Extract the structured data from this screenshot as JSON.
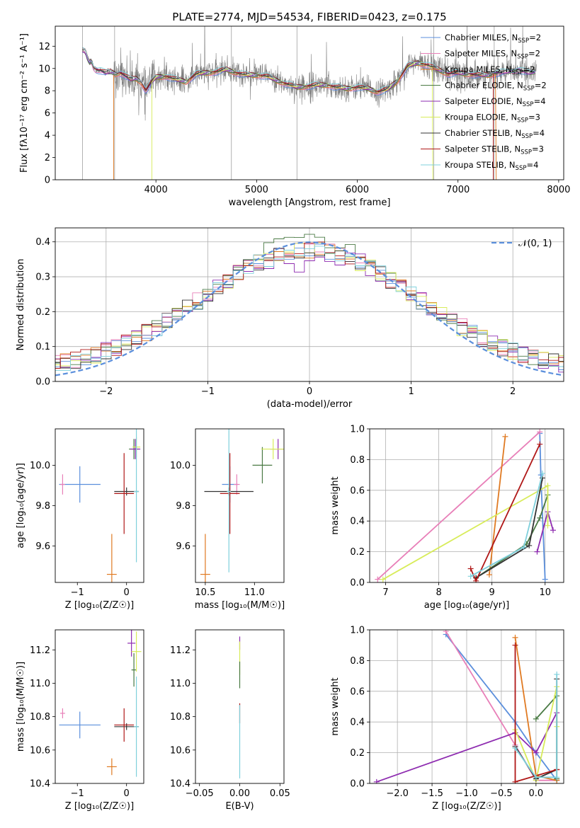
{
  "figure": {
    "title": "PLATE=2774, MJD=54534, FIBERID=0423, z=0.175"
  },
  "colors": {
    "c1": "#5b8fdc",
    "c2": "#e87fb8",
    "c3": "#e07a22",
    "c4": "#4a7a44",
    "c5": "#8e2cb0",
    "c6": "#d8ec5a",
    "c7": "#333333",
    "c8": "#b01818",
    "c9": "#7fd0dc",
    "data": "#7f7f7f",
    "normal": "#5b8fdc"
  },
  "chart_data": [
    {
      "id": "spectrum",
      "type": "line",
      "title": "PLATE=2774, MJD=54534, FIBERID=0423, z=0.175",
      "xlabel": "wavelength [Angstrom, rest frame]",
      "ylabel": "Flux [fλ10⁻¹⁷ erg cm⁻² s⁻¹ A⁻¹]",
      "xlim": [
        3000,
        8050
      ],
      "ylim": [
        0,
        13.8
      ],
      "xticks": [
        4000,
        5000,
        6000,
        7000,
        8000
      ],
      "yticks": [
        0,
        2,
        4,
        6,
        8,
        10,
        12
      ],
      "grid": false,
      "legend_position": "top-right",
      "series": [
        {
          "name": "Chabrier MILES, N",
          "sub": "SSP",
          "suffix": "=2",
          "color": "c1"
        },
        {
          "name": "Salpeter MILES, N",
          "sub": "SSP",
          "suffix": "=2",
          "color": "c2"
        },
        {
          "name": "Kroupa MILES, N",
          "sub": "SSP",
          "suffix": "=2",
          "color": "c3"
        },
        {
          "name": "Chabrier ELODIE, N",
          "sub": "SSP",
          "suffix": "=2",
          "color": "c4"
        },
        {
          "name": "Salpeter ELODIE, N",
          "sub": "SSP",
          "suffix": "=4",
          "color": "c5"
        },
        {
          "name": "Kroupa ELODIE, N",
          "sub": "SSP",
          "suffix": "=3",
          "color": "c6"
        },
        {
          "name": "Chabrier STELIB, N",
          "sub": "SSP",
          "suffix": "=4",
          "color": "c7"
        },
        {
          "name": "Salpeter STELIB, N",
          "sub": "SSP",
          "suffix": "=3",
          "color": "c8"
        },
        {
          "name": "Kroupa STELIB, N",
          "sub": "SSP",
          "suffix": "=4",
          "color": "c9"
        }
      ],
      "model_continuum": {
        "x": [
          3270,
          3300,
          3320,
          3340,
          3360,
          3380,
          3400,
          3450,
          3500,
          3550,
          3600,
          3650,
          3700,
          3750,
          3800,
          3850,
          3900,
          3950,
          4000,
          4100,
          4200,
          4300,
          4400,
          4500,
          4600,
          4700,
          4800,
          4900,
          5000,
          5100,
          5200,
          5300,
          5400,
          5500,
          5600,
          5700,
          5800,
          5900,
          6000,
          6100,
          6200,
          6300,
          6400,
          6500,
          6600,
          6700,
          6800,
          6900,
          7000,
          7100,
          7200,
          7300,
          7400,
          7500,
          7600,
          7700,
          7800
        ],
        "y": [
          11.6,
          11.5,
          10.9,
          10.5,
          10.7,
          10.1,
          9.9,
          9.8,
          9.6,
          9.7,
          9.5,
          9.6,
          9.3,
          9.0,
          9.1,
          8.8,
          8.0,
          8.7,
          9.2,
          9.3,
          9.0,
          8.8,
          9.5,
          9.6,
          9.7,
          9.9,
          9.6,
          9.4,
          9.4,
          9.3,
          8.9,
          8.6,
          8.3,
          8.4,
          8.5,
          8.5,
          8.3,
          8.2,
          8.3,
          8.2,
          7.9,
          8.1,
          8.9,
          10.2,
          10.5,
          10.3,
          9.9,
          9.5,
          9.6,
          9.5,
          9.4,
          9.4,
          9.6,
          9.7,
          9.9,
          9.6,
          9.7
        ]
      },
      "model_cutoffs": [
        {
          "color": "c3",
          "start": 3580
        },
        {
          "color": "c6",
          "start": 3960
        },
        {
          "color": "c3",
          "end": 7380
        },
        {
          "color": "c6",
          "end": 6750
        },
        {
          "color": "c8",
          "end": 7350
        }
      ],
      "data_range": [
        3270,
        7780
      ]
    },
    {
      "id": "residuals",
      "type": "line",
      "xlabel": "(data-model)/error",
      "ylabel": "Normed distribution",
      "xlim": [
        -2.5,
        2.5
      ],
      "ylim": [
        0,
        0.44
      ],
      "xticks": [
        -2,
        -1,
        0,
        1,
        2
      ],
      "yticks": [
        0.0,
        0.1,
        0.2,
        0.3,
        0.4
      ],
      "grid": true,
      "legend_position": "top-right",
      "legend": "𝒩(0, 1)"
    },
    {
      "id": "age_vs_Z",
      "type": "scatter",
      "xlabel": "Z [log₁₀(Z/Z☉)]",
      "ylabel": "age  [log₁₀(age/yr)]",
      "xlim": [
        -1.45,
        0.35
      ],
      "ylim": [
        9.42,
        10.18
      ],
      "xticks": [
        -1,
        0
      ],
      "yticks": [
        9.6,
        9.8,
        10.0
      ],
      "grid": false,
      "points": [
        {
          "x": -0.95,
          "y": 9.905,
          "xe": 0.42,
          "ye": 0.09,
          "color": "c1"
        },
        {
          "x": -1.3,
          "y": 9.905,
          "xe": 0.05,
          "ye": 0.05,
          "color": "c2"
        },
        {
          "x": -0.3,
          "y": 9.46,
          "xe": 0.1,
          "ye": 0.2,
          "color": "c3"
        },
        {
          "x": 0.15,
          "y": 10.08,
          "xe": 0.1,
          "ye": 0.05,
          "color": "c4"
        },
        {
          "x": 0.18,
          "y": 10.08,
          "xe": 0.1,
          "ye": 0.05,
          "color": "c5"
        },
        {
          "x": 0.2,
          "y": 10.09,
          "xe": 0.08,
          "ye": 0.05,
          "color": "c6"
        },
        {
          "x": 0.0,
          "y": 9.87,
          "xe": 0.25,
          "ye": 0.02,
          "color": "c7"
        },
        {
          "x": -0.05,
          "y": 9.86,
          "xe": 0.2,
          "ye": 0.2,
          "color": "c8"
        },
        {
          "x": 0.2,
          "y": 9.87,
          "xe": 0.05,
          "ye": 0.35,
          "color": "c9"
        }
      ]
    },
    {
      "id": "age_vs_mass",
      "type": "scatter",
      "xlabel": "mass [log₁₀(M/M☉)]",
      "ylabel": "",
      "xlim": [
        10.4,
        11.3
      ],
      "ylim": [
        9.42,
        10.18
      ],
      "xticks": [
        10.5,
        11.0
      ],
      "yticks": [
        9.6,
        9.8,
        10.0
      ],
      "grid": false,
      "points": [
        {
          "x": 10.75,
          "y": 9.905,
          "xe": 0.08,
          "ye": 0.09,
          "color": "c1"
        },
        {
          "x": 10.82,
          "y": 9.905,
          "xe": 0.03,
          "ye": 0.05,
          "color": "c2"
        },
        {
          "x": 10.5,
          "y": 9.46,
          "xe": 0.05,
          "ye": 0.2,
          "color": "c3"
        },
        {
          "x": 11.08,
          "y": 10.0,
          "xe": 0.1,
          "ye": 0.09,
          "color": "c4"
        },
        {
          "x": 11.24,
          "y": 10.08,
          "xe": 0.08,
          "ye": 0.05,
          "color": "c5"
        },
        {
          "x": 11.19,
          "y": 10.08,
          "xe": 0.12,
          "ye": 0.05,
          "color": "c6"
        },
        {
          "x": 10.74,
          "y": 9.87,
          "xe": 0.25,
          "ye": 0.02,
          "color": "c7"
        },
        {
          "x": 10.75,
          "y": 9.86,
          "xe": 0.1,
          "ye": 0.2,
          "color": "c8"
        },
        {
          "x": 10.74,
          "y": 9.87,
          "xe": 0.02,
          "ye": 0.4,
          "color": "c9"
        }
      ]
    },
    {
      "id": "weight_vs_age",
      "type": "line",
      "xlabel": "age  [log₁₀(age/yr)]",
      "ylabel": "mass weight",
      "xlim": [
        6.7,
        10.35
      ],
      "ylim": [
        0,
        1
      ],
      "xticks": [
        7,
        8,
        9,
        10
      ],
      "yticks": [
        0.0,
        0.2,
        0.4,
        0.6,
        0.8,
        1.0
      ],
      "grid": true,
      "series": [
        {
          "color": "c1",
          "x": [
            9.9,
            9.92,
            10.0
          ],
          "y": [
            0.97,
            0.7,
            0.02
          ]
        },
        {
          "color": "c2",
          "x": [
            6.85,
            9.9
          ],
          "y": [
            0.02,
            0.98
          ]
        },
        {
          "color": "c3",
          "x": [
            8.95,
            9.25
          ],
          "y": [
            0.05,
            0.95
          ]
        },
        {
          "color": "c4",
          "x": [
            8.7,
            9.65,
            9.9,
            10.05
          ],
          "y": [
            0.03,
            0.25,
            0.42,
            0.57
          ]
        },
        {
          "color": "c5",
          "x": [
            9.85,
            10.05,
            10.15
          ],
          "y": [
            0.2,
            0.46,
            0.34
          ]
        },
        {
          "color": "c6",
          "x": [
            6.95,
            10.05,
            10.05
          ],
          "y": [
            0.02,
            0.63,
            0.37
          ]
        },
        {
          "color": "c7",
          "x": [
            8.7,
            9.7,
            9.95
          ],
          "y": [
            0.03,
            0.24,
            0.68
          ]
        },
        {
          "color": "c8",
          "x": [
            8.6,
            8.7,
            9.9
          ],
          "y": [
            0.09,
            0.01,
            0.9
          ]
        },
        {
          "color": "c9",
          "x": [
            8.6,
            9.6,
            9.95
          ],
          "y": [
            0.04,
            0.23,
            0.71
          ]
        }
      ]
    },
    {
      "id": "mass_vs_Z",
      "type": "scatter",
      "xlabel": "Z [log₁₀(Z/Z☉)]",
      "ylabel": "mass [log₁₀(M/M☉)]",
      "xlim": [
        -1.45,
        0.35
      ],
      "ylim": [
        10.4,
        11.32
      ],
      "xticks": [
        -1,
        0
      ],
      "yticks": [
        10.4,
        10.6,
        10.8,
        11.0,
        11.2
      ],
      "grid": false,
      "points": [
        {
          "x": -0.95,
          "y": 10.75,
          "xe": 0.42,
          "ye": 0.08,
          "color": "c1"
        },
        {
          "x": -1.3,
          "y": 10.82,
          "xe": 0.05,
          "ye": 0.03,
          "color": "c2"
        },
        {
          "x": -0.3,
          "y": 10.5,
          "xe": 0.1,
          "ye": 0.05,
          "color": "c3"
        },
        {
          "x": 0.15,
          "y": 11.08,
          "xe": 0.05,
          "ye": 0.1,
          "color": "c4"
        },
        {
          "x": 0.1,
          "y": 11.24,
          "xe": 0.08,
          "ye": 0.08,
          "color": "c5"
        },
        {
          "x": 0.2,
          "y": 11.19,
          "xe": 0.1,
          "ye": 0.12,
          "color": "c6"
        },
        {
          "x": 0.0,
          "y": 10.74,
          "xe": 0.25,
          "ye": 0.02,
          "color": "c7"
        },
        {
          "x": -0.05,
          "y": 10.75,
          "xe": 0.2,
          "ye": 0.1,
          "color": "c8"
        },
        {
          "x": 0.2,
          "y": 10.74,
          "xe": 0.05,
          "ye": 0.3,
          "color": "c9"
        }
      ]
    },
    {
      "id": "mass_vs_ebv",
      "type": "scatter",
      "xlabel": "E(B-V)",
      "ylabel": "",
      "xlim": [
        -0.055,
        0.055
      ],
      "ylim": [
        10.4,
        11.32
      ],
      "xticks": [
        -0.05,
        0.0,
        0.05
      ],
      "yticks": [
        10.4,
        10.6,
        10.8,
        11.0,
        11.2
      ],
      "grid": false,
      "points": [
        {
          "x": 0,
          "y": 11.24,
          "xe": 0,
          "ye": 0.04,
          "color": "c5"
        },
        {
          "x": 0,
          "y": 11.15,
          "xe": 0,
          "ye": 0.1,
          "color": "c6"
        },
        {
          "x": 0,
          "y": 11.05,
          "xe": 0,
          "ye": 0.08,
          "color": "c4"
        },
        {
          "x": 0,
          "y": 10.82,
          "xe": 0,
          "ye": 0.06,
          "color": "c8"
        },
        {
          "x": 0,
          "y": 10.65,
          "xe": 0,
          "ye": 0.22,
          "color": "c9"
        }
      ]
    },
    {
      "id": "weight_vs_Z",
      "type": "line",
      "xlabel": "Z [log₁₀(Z/Z☉)]",
      "ylabel": "mass weight",
      "xlim": [
        -2.4,
        0.4
      ],
      "ylim": [
        0,
        1
      ],
      "xticks": [
        -2.0,
        -1.5,
        -1.0,
        -0.5,
        0.0
      ],
      "yticks": [
        0.0,
        0.2,
        0.4,
        0.6,
        0.8,
        1.0
      ],
      "grid": true,
      "series": [
        {
          "color": "c1",
          "x": [
            -1.3,
            -0.3,
            0.0,
            0.3
          ],
          "y": [
            0.97,
            0.4,
            0.2,
            0.02
          ]
        },
        {
          "color": "c2",
          "x": [
            -1.3,
            -0.3,
            0.0,
            0.3
          ],
          "y": [
            0.99,
            0.25,
            0.02,
            0.02
          ]
        },
        {
          "color": "c3",
          "x": [
            -0.3,
            0.0,
            0.3
          ],
          "y": [
            0.95,
            0.05,
            0.02
          ]
        },
        {
          "color": "c4",
          "x": [
            0.0,
            0.3,
            0.3
          ],
          "y": [
            0.42,
            0.57,
            0.03
          ]
        },
        {
          "color": "c5",
          "x": [
            -2.3,
            -0.3,
            0.0,
            0.3
          ],
          "y": [
            0.01,
            0.33,
            0.2,
            0.46
          ]
        },
        {
          "color": "c6",
          "x": [
            -0.3,
            0.0,
            0.3,
            0.3
          ],
          "y": [
            0.35,
            0.02,
            0.63,
            0.37
          ]
        },
        {
          "color": "c7",
          "x": [
            -0.3,
            0.0,
            0.3,
            0.3
          ],
          "y": [
            0.24,
            0.03,
            0.09,
            0.68
          ]
        },
        {
          "color": "c8",
          "x": [
            -0.3,
            -0.3,
            0.3
          ],
          "y": [
            0.9,
            0.01,
            0.09
          ]
        },
        {
          "color": "c9",
          "x": [
            -0.3,
            0.0,
            0.3,
            0.3
          ],
          "y": [
            0.23,
            0.04,
            0.04,
            0.71
          ]
        }
      ]
    }
  ]
}
